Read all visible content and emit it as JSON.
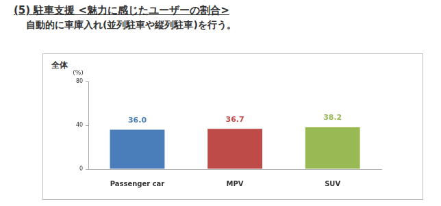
{
  "title": "(5) 駐車支援 <魅力に感じたユーザーの割合>",
  "subtitle": "自動的に車庫入れ(並列駐車や縦列駐車)を行う。",
  "chart_data": {
    "type": "bar",
    "annotations": [
      "全体"
    ],
    "y_label": "(%)",
    "categories": [
      "Passenger car",
      "MPV",
      "SUV"
    ],
    "values": [
      36.0,
      36.7,
      38.2
    ],
    "value_labels": [
      "36.0",
      "36.7",
      "38.2"
    ],
    "colors": [
      "#4a7ebb",
      "#be4b48",
      "#98b954"
    ],
    "ylim": [
      0,
      80
    ],
    "yticks": [
      0,
      40,
      80
    ],
    "grid": false,
    "data_labels": true
  }
}
